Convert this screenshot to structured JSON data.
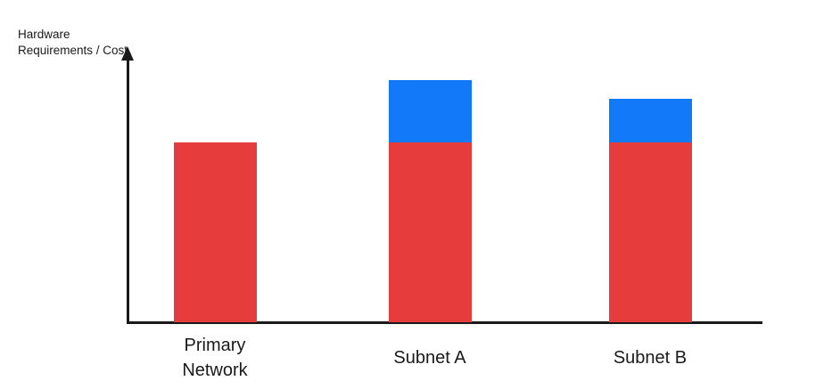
{
  "page": {
    "background": "#ffffff"
  },
  "chart_data": {
    "type": "bar",
    "stacked": true,
    "title": "",
    "xlabel": "",
    "ylabel": "Hardware Requirements / Cost",
    "categories": [
      "Primary Network",
      "Subnet A",
      "Subnet B"
    ],
    "series": [
      {
        "name": "red-base-segment",
        "color": "#e63c3c",
        "values": [
          66,
          66,
          66
        ]
      },
      {
        "name": "blue-top-segment",
        "color": "#127af8",
        "values": [
          0,
          23,
          16
        ]
      }
    ],
    "ylim": [
      0,
      100
    ],
    "y_ticks": [],
    "grid": false,
    "legend": "none",
    "axis_color": "#1a1a1a",
    "text_color": "#1a1a1a",
    "notes": "Y axis is qualitative (no tick values); values are relative units estimated from bar heights"
  }
}
